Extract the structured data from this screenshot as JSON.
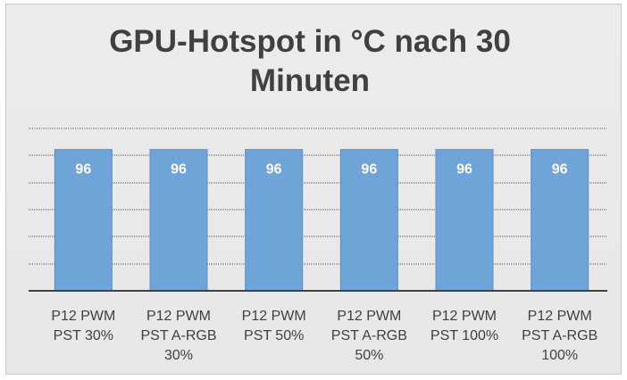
{
  "chart_data": {
    "type": "bar",
    "title": "GPU-Hotspot in °C nach 30 Minuten",
    "title_lines": [
      "GPU-Hotspot in °C nach 30",
      "Minuten"
    ],
    "categories": [
      [
        "P12 PWM",
        "PST 30%"
      ],
      [
        "P12 PWM",
        "PST A-RGB",
        "30%"
      ],
      [
        "P12 PWM",
        "PST 50%"
      ],
      [
        "P12 PWM",
        "PST A-RGB",
        "50%"
      ],
      [
        "P12 PWM",
        "PST 100%"
      ],
      [
        "P12 PWM",
        "PST A-RGB",
        "100%"
      ]
    ],
    "values": [
      96,
      96,
      96,
      96,
      96,
      96
    ],
    "data_labels": [
      "96",
      "96",
      "96",
      "96",
      "96",
      "96"
    ],
    "xlabel": "",
    "ylabel": "",
    "ylim": [
      91.5,
      96.5
    ],
    "y_axis_labels_visible": false,
    "grid": true,
    "legend": "none",
    "colors": {
      "bar": "#6fa4d8",
      "bar_edge": "#5b8fc7",
      "grid": "#595959",
      "axis": "#404040",
      "label_text": "#ffffff",
      "category_text": "#404040",
      "title_text": "#404040"
    }
  }
}
